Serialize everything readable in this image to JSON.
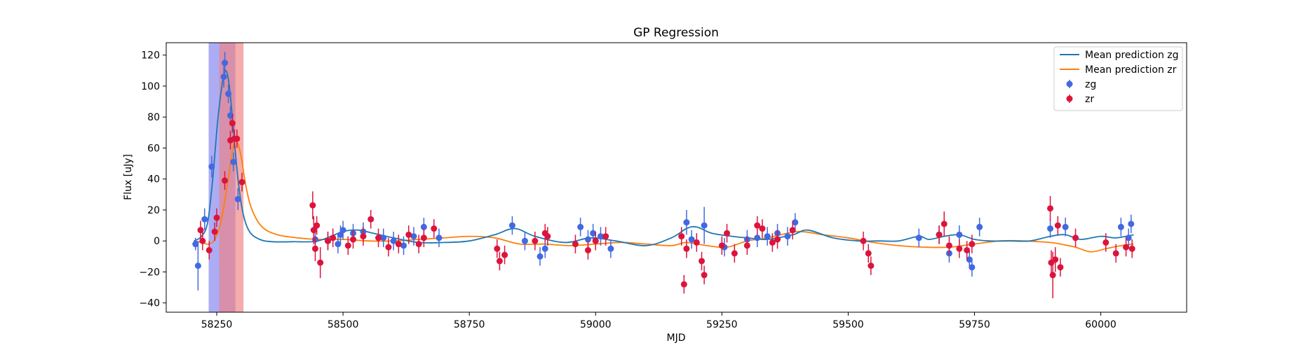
{
  "chart_data": {
    "type": "scatter",
    "title": "GP Regression",
    "xlabel": "MJD",
    "ylabel": "Flux [uJy]",
    "xlim": [
      58150,
      60170
    ],
    "ylim": [
      -46,
      128
    ],
    "xticks": [
      58250,
      58500,
      58750,
      59000,
      59250,
      59500,
      59750,
      60000
    ],
    "yticks": [
      -40,
      -20,
      0,
      20,
      40,
      60,
      80,
      100,
      120
    ],
    "grid": false,
    "legend_position": "top-right",
    "colors": {
      "zg_points": "#4169e1",
      "zr_points": "#dc143c",
      "zg_line": "#1f77b4",
      "zr_line": "#ff7f0e",
      "zg_band": "#8080f0",
      "zr_band": "#f08080"
    },
    "bands": [
      {
        "band": "zg",
        "x_start": 58234,
        "x_end": 58287
      },
      {
        "band": "zr",
        "x_start": 58255,
        "x_end": 58303
      }
    ],
    "legend": [
      "Mean prediction zg",
      "Mean prediction zr",
      "zg",
      "zr"
    ],
    "series": [
      {
        "name": "Mean prediction zg",
        "kind": "line",
        "x": [
          58205,
          58220,
          58232,
          58242,
          58252,
          58262,
          58268,
          58275,
          58283,
          58292,
          58302,
          58315,
          58335,
          58360,
          58400,
          58450,
          58500,
          58530,
          58560,
          58600,
          58650,
          58700,
          58750,
          58800,
          58840,
          58880,
          58940,
          58990,
          59040,
          59100,
          59150,
          59180,
          59200,
          59230,
          59270,
          59300,
          59340,
          59390,
          59420,
          59470,
          59520,
          59560,
          59600,
          59640,
          59660,
          59690,
          59720,
          59750,
          59780,
          59820,
          59860,
          59900,
          59930,
          59960,
          60000,
          60030,
          60065
        ],
        "y": [
          0,
          3,
          12,
          40,
          78,
          104,
          110,
          100,
          72,
          40,
          18,
          6,
          1,
          -0.5,
          -0.5,
          0,
          6,
          7,
          5,
          2,
          -1,
          -1,
          0,
          4,
          8,
          3,
          -1,
          2,
          0,
          -3,
          2,
          8,
          9,
          5,
          3,
          2,
          1,
          4,
          7,
          2,
          0,
          0,
          0,
          3,
          1,
          3,
          4,
          1,
          0,
          0,
          0,
          3,
          4,
          1,
          3,
          2,
          4
        ]
      },
      {
        "name": "Mean prediction zr",
        "kind": "line",
        "x": [
          58205,
          58220,
          58235,
          58248,
          58260,
          58272,
          58282,
          58290,
          58298,
          58308,
          58320,
          58340,
          58370,
          58410,
          58450,
          58500,
          58550,
          58600,
          58650,
          58700,
          58750,
          58800,
          58850,
          58900,
          58950,
          59000,
          59050,
          59100,
          59150,
          59180,
          59220,
          59260,
          59300,
          59340,
          59400,
          59450,
          59500,
          59550,
          59600,
          59650,
          59700,
          59750,
          59800,
          59850,
          59900,
          59920,
          59950,
          59980,
          60010,
          60040,
          60065
        ],
        "y": [
          0,
          -1,
          -2,
          2,
          15,
          38,
          60,
          64,
          55,
          35,
          20,
          9,
          4,
          2,
          1,
          1,
          0,
          0,
          1,
          2,
          3,
          2,
          -2,
          -2,
          -3,
          -2,
          -1,
          -2,
          -3,
          -1,
          -3,
          -4,
          0,
          2,
          6,
          4,
          2,
          -1,
          -3,
          -4,
          -4,
          -2,
          0,
          0,
          -1,
          -2,
          -4,
          -7,
          -5,
          -3,
          -2
        ]
      },
      {
        "name": "zg",
        "kind": "errorbar",
        "x": [
          58208,
          58213,
          58226,
          58240,
          58264,
          58266,
          58273,
          58277,
          58283,
          58292,
          58445,
          58470,
          58490,
          58495,
          58500,
          58520,
          58540,
          58580,
          58600,
          58620,
          58640,
          58660,
          58690,
          58835,
          58860,
          58890,
          58900,
          58970,
          58985,
          58995,
          59010,
          59030,
          59180,
          59190,
          59215,
          59255,
          59300,
          59320,
          59340,
          59360,
          59380,
          59395,
          59640,
          59680,
          59700,
          59720,
          59740,
          59745,
          59760,
          59900,
          59930,
          60040,
          60055,
          60060
        ],
        "y": [
          -2,
          -16,
          14,
          48,
          106,
          115,
          95,
          81,
          51,
          27,
          1,
          0,
          -2,
          4,
          7,
          5,
          6,
          2,
          0,
          -3,
          3,
          9,
          2,
          10,
          0,
          -10,
          -5,
          9,
          1,
          5,
          3,
          -5,
          12,
          1,
          10,
          -4,
          1,
          2,
          3,
          5,
          3,
          12,
          2,
          4,
          -8,
          4,
          -12,
          -17,
          9,
          8,
          9,
          9,
          2,
          11
        ],
        "err": [
          4,
          16,
          7,
          7,
          7,
          7,
          6,
          6,
          6,
          7,
          6,
          6,
          6,
          6,
          6,
          6,
          6,
          6,
          6,
          6,
          6,
          6,
          6,
          6,
          6,
          6,
          6,
          6,
          6,
          6,
          6,
          6,
          8,
          6,
          12,
          6,
          6,
          6,
          6,
          6,
          6,
          6,
          6,
          6,
          6,
          6,
          6,
          6,
          6,
          6,
          6,
          6,
          6,
          6
        ]
      },
      {
        "name": "zr",
        "kind": "errorbar",
        "x": [
          58218,
          58222,
          58235,
          58246,
          58250,
          58266,
          58277,
          58281,
          58285,
          58290,
          58300,
          58440,
          58442,
          58445,
          58448,
          58455,
          58470,
          58480,
          58510,
          58520,
          58540,
          58555,
          58570,
          58590,
          58610,
          58630,
          58650,
          58660,
          58680,
          58805,
          58810,
          58820,
          58880,
          58900,
          58905,
          58960,
          58985,
          59000,
          59020,
          59170,
          59175,
          59180,
          59200,
          59210,
          59215,
          59250,
          59260,
          59275,
          59300,
          59320,
          59330,
          59350,
          59360,
          59390,
          59530,
          59540,
          59545,
          59680,
          59690,
          59700,
          59720,
          59735,
          59745,
          59900,
          59902,
          59905,
          59910,
          59915,
          59920,
          59950,
          60010,
          60030,
          60050,
          60062
        ],
        "y": [
          7,
          0,
          -6,
          6,
          15,
          39,
          65,
          76,
          66,
          66,
          38,
          23,
          7,
          -5,
          10,
          -14,
          0,
          2,
          -3,
          1,
          3,
          14,
          2,
          -4,
          -2,
          4,
          -2,
          2,
          8,
          -5,
          -13,
          -9,
          0,
          5,
          3,
          -2,
          -6,
          0,
          3,
          3,
          -28,
          -5,
          -1,
          -13,
          -22,
          -3,
          5,
          -8,
          -3,
          10,
          8,
          -1,
          1,
          7,
          0,
          -8,
          -16,
          4,
          11,
          -3,
          -5,
          -6,
          -2,
          21,
          -14,
          -22,
          -12,
          10,
          -17,
          2,
          -1,
          -8,
          -4,
          -5
        ],
        "err": [
          6,
          6,
          6,
          6,
          6,
          6,
          6,
          6,
          6,
          6,
          6,
          9,
          9,
          8,
          6,
          10,
          6,
          6,
          6,
          6,
          6,
          6,
          6,
          6,
          6,
          6,
          6,
          6,
          6,
          6,
          6,
          6,
          6,
          6,
          6,
          6,
          6,
          6,
          6,
          6,
          6,
          6,
          6,
          6,
          6,
          6,
          6,
          6,
          6,
          6,
          6,
          6,
          6,
          6,
          6,
          6,
          6,
          6,
          8,
          6,
          6,
          6,
          6,
          8,
          8,
          15,
          8,
          6,
          6,
          6,
          6,
          6,
          6,
          6
        ]
      }
    ]
  }
}
